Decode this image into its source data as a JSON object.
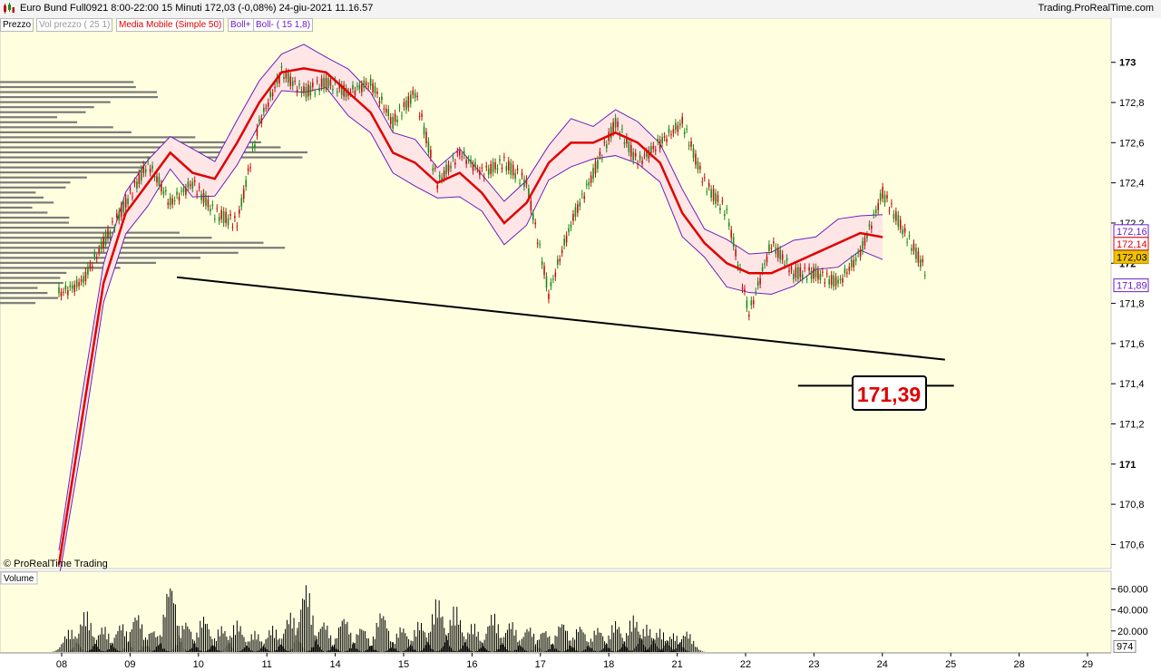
{
  "header": {
    "title": "Euro Bund Full0921 8:00-22:00   15 Minuti    172,03 (-0,08%)    24-giu-2021 11.16.57",
    "brand": "Trading.ProRealTime.com",
    "icon": "candlestick-icon"
  },
  "legend": {
    "price_label": "Prezzo",
    "volume_profile_label": "Vol prezzo ( 25 1)",
    "ma_label": "Media Mobile (Simple 50)",
    "boll_plus_label": "Boll+",
    "boll_minus_label": "Boll- ( 15 1,8)"
  },
  "watermark": "© ProRealTime Trading",
  "volume_panel_label": "Volume",
  "annotation": {
    "target_value": "171,39"
  },
  "colors": {
    "background": "#ffffe0",
    "ma": "#e00000",
    "bollinger": "#6a1fbf",
    "bollinger_fill": "#ffe6e6",
    "candle_up": "#1a8a1a",
    "candle_down": "#c01010",
    "volume_profile": "#7a7a7a",
    "target_text": "#e00000",
    "last_price_badge": "#f3c200"
  },
  "chart_data": {
    "type": "candlestick",
    "instrument": "Euro Bund Full0921",
    "timeframe": "15 Minuti",
    "x_tick_labels": [
      "08",
      "09",
      "10",
      "11",
      "14",
      "15",
      "16",
      "17",
      "18",
      "21",
      "22",
      "23",
      "24",
      "25",
      "28",
      "29"
    ],
    "y_tick_labels": [
      "173",
      "172,8",
      "172,6",
      "172,4",
      "172,2",
      "172",
      "171,8",
      "171,6",
      "171,4",
      "171,2",
      "171",
      "170,8",
      "170,6"
    ],
    "ylim": [
      170.48,
      173.22
    ],
    "price_badges": [
      {
        "value": "172,16",
        "kind": "boll_plus"
      },
      {
        "value": "172,14",
        "kind": "ma"
      },
      {
        "value": "172,03",
        "kind": "last"
      },
      {
        "value": "171,89",
        "kind": "boll_minus"
      }
    ],
    "close_series": [
      [
        0,
        171.85
      ],
      [
        1,
        171.9
      ],
      [
        2,
        172.1
      ],
      [
        3,
        172.3
      ],
      [
        4,
        172.5
      ],
      [
        5,
        172.3
      ],
      [
        6,
        172.4
      ],
      [
        7,
        172.25
      ],
      [
        8,
        172.2
      ],
      [
        9,
        172.7
      ],
      [
        10,
        172.95
      ],
      [
        11,
        172.85
      ],
      [
        12,
        172.9
      ],
      [
        13,
        172.85
      ],
      [
        14,
        172.9
      ],
      [
        15,
        172.7
      ],
      [
        16,
        172.85
      ],
      [
        17,
        172.4
      ],
      [
        18,
        172.55
      ],
      [
        19,
        172.45
      ],
      [
        20,
        172.5
      ],
      [
        21,
        172.4
      ],
      [
        22,
        171.85
      ],
      [
        23,
        172.2
      ],
      [
        24,
        172.45
      ],
      [
        25,
        172.7
      ],
      [
        26,
        172.5
      ],
      [
        27,
        172.6
      ],
      [
        28,
        172.7
      ],
      [
        29,
        172.4
      ],
      [
        30,
        172.25
      ],
      [
        31,
        171.75
      ],
      [
        32,
        172.1
      ],
      [
        33,
        171.95
      ],
      [
        34,
        171.95
      ],
      [
        35,
        171.9
      ],
      [
        36,
        172.05
      ],
      [
        37,
        172.35
      ],
      [
        38,
        172.15
      ],
      [
        39,
        171.95
      ]
    ],
    "ma_series": [
      [
        0,
        170.5
      ],
      [
        1,
        171.2
      ],
      [
        2,
        171.9
      ],
      [
        3,
        172.25
      ],
      [
        4,
        172.4
      ],
      [
        5,
        172.55
      ],
      [
        6,
        172.45
      ],
      [
        7,
        172.42
      ],
      [
        8,
        172.6
      ],
      [
        9,
        172.8
      ],
      [
        10,
        172.95
      ],
      [
        11,
        172.97
      ],
      [
        12,
        172.95
      ],
      [
        13,
        172.85
      ],
      [
        14,
        172.75
      ],
      [
        15,
        172.55
      ],
      [
        16,
        172.5
      ],
      [
        17,
        172.4
      ],
      [
        18,
        172.45
      ],
      [
        19,
        172.35
      ],
      [
        20,
        172.2
      ],
      [
        21,
        172.3
      ],
      [
        22,
        172.5
      ],
      [
        23,
        172.6
      ],
      [
        24,
        172.6
      ],
      [
        25,
        172.65
      ],
      [
        26,
        172.6
      ],
      [
        27,
        172.5
      ],
      [
        28,
        172.25
      ],
      [
        29,
        172.1
      ],
      [
        30,
        172.0
      ],
      [
        31,
        171.95
      ],
      [
        32,
        171.95
      ],
      [
        33,
        172.0
      ],
      [
        34,
        172.05
      ],
      [
        35,
        172.1
      ],
      [
        36,
        172.15
      ],
      [
        37,
        172.13
      ]
    ],
    "trendline": {
      "from": [
        5.3,
        171.93
      ],
      "to": [
        39.8,
        171.52
      ]
    },
    "target_line": {
      "from": [
        33.2,
        171.39
      ],
      "to": [
        40.2,
        171.39
      ],
      "value": 171.39
    },
    "volume_axis": {
      "tick_labels": [
        "60.000",
        "40.000",
        "20.000"
      ],
      "ticks": [
        60000,
        40000,
        20000
      ],
      "last_volume": "974",
      "ylim": [
        0,
        75000
      ]
    },
    "volume_peaks": [
      [
        0.5,
        22000
      ],
      [
        1.2,
        40000
      ],
      [
        2.0,
        25000
      ],
      [
        2.8,
        28000
      ],
      [
        3.5,
        38000
      ],
      [
        4.2,
        22000
      ],
      [
        5.0,
        68000
      ],
      [
        5.7,
        30000
      ],
      [
        6.5,
        35000
      ],
      [
        7.3,
        25000
      ],
      [
        8.0,
        30000
      ],
      [
        8.8,
        20000
      ],
      [
        9.6,
        25000
      ],
      [
        10.4,
        38000
      ],
      [
        11.1,
        66000
      ],
      [
        11.9,
        30000
      ],
      [
        12.8,
        35000
      ],
      [
        13.6,
        25000
      ],
      [
        14.5,
        40000
      ],
      [
        15.4,
        25000
      ],
      [
        16.2,
        30000
      ],
      [
        17.0,
        52000
      ],
      [
        17.8,
        45000
      ],
      [
        18.6,
        28000
      ],
      [
        19.5,
        38000
      ],
      [
        20.3,
        30000
      ],
      [
        21.1,
        25000
      ],
      [
        21.8,
        22000
      ],
      [
        22.6,
        30000
      ],
      [
        23.4,
        26000
      ],
      [
        24.2,
        24000
      ],
      [
        25.0,
        30000
      ],
      [
        25.8,
        35000
      ],
      [
        26.4,
        26000
      ],
      [
        27.0,
        22000
      ],
      [
        27.6,
        18000
      ],
      [
        28.2,
        20000
      ]
    ]
  }
}
